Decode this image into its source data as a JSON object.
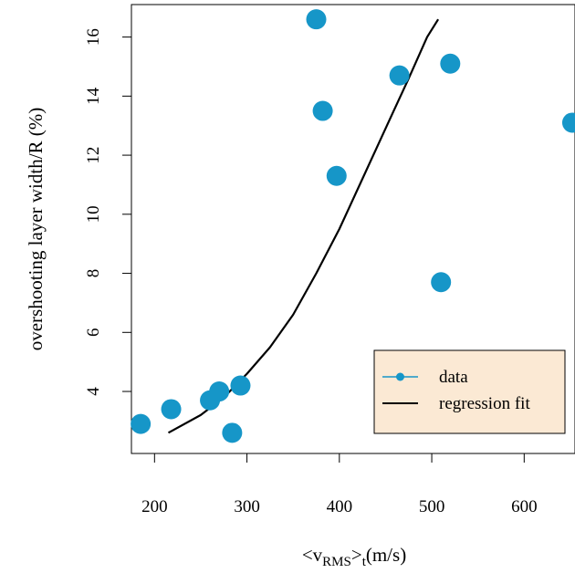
{
  "chart_data": {
    "type": "scatter",
    "title": "",
    "xlabel": {
      "prefix": "<v",
      "sub": "RMS",
      "mid": ">",
      "sub2": "t",
      "suffix": "(m/s)"
    },
    "ylabel": "overshooting layer width/R (%)",
    "xlim": [
      175,
      655
    ],
    "ylim": [
      1.9,
      17.1
    ],
    "x_ticks": [
      200,
      300,
      400,
      500,
      600
    ],
    "y_ticks": [
      4,
      6,
      8,
      10,
      12,
      14,
      16
    ],
    "grid": false,
    "legend": {
      "position": "bottom-right",
      "entries": [
        {
          "label": "data",
          "kind": "point",
          "color": "#1696c8"
        },
        {
          "label": "regression fit",
          "kind": "line",
          "color": "#000000"
        }
      ]
    },
    "series": [
      {
        "kind": "scatter",
        "color": "#1696c8",
        "points": [
          {
            "x": 185,
            "y": 2.9
          },
          {
            "x": 218,
            "y": 3.4
          },
          {
            "x": 260,
            "y": 3.7
          },
          {
            "x": 270,
            "y": 4.0
          },
          {
            "x": 284,
            "y": 2.6
          },
          {
            "x": 293,
            "y": 4.2
          },
          {
            "x": 375,
            "y": 16.6
          },
          {
            "x": 382,
            "y": 13.5
          },
          {
            "x": 397,
            "y": 11.3
          },
          {
            "x": 465,
            "y": 14.7
          },
          {
            "x": 510,
            "y": 7.7
          },
          {
            "x": 520,
            "y": 15.1
          },
          {
            "x": 652,
            "y": 13.1
          }
        ]
      },
      {
        "kind": "line",
        "color": "#000000",
        "points": [
          {
            "x": 215,
            "y": 2.6
          },
          {
            "x": 250,
            "y": 3.2
          },
          {
            "x": 275,
            "y": 3.8
          },
          {
            "x": 300,
            "y": 4.6
          },
          {
            "x": 325,
            "y": 5.5
          },
          {
            "x": 350,
            "y": 6.6
          },
          {
            "x": 375,
            "y": 8.0
          },
          {
            "x": 400,
            "y": 9.5
          },
          {
            "x": 425,
            "y": 11.2
          },
          {
            "x": 450,
            "y": 12.9
          },
          {
            "x": 475,
            "y": 14.6
          },
          {
            "x": 495,
            "y": 16.0
          },
          {
            "x": 507,
            "y": 16.6
          }
        ]
      }
    ]
  }
}
